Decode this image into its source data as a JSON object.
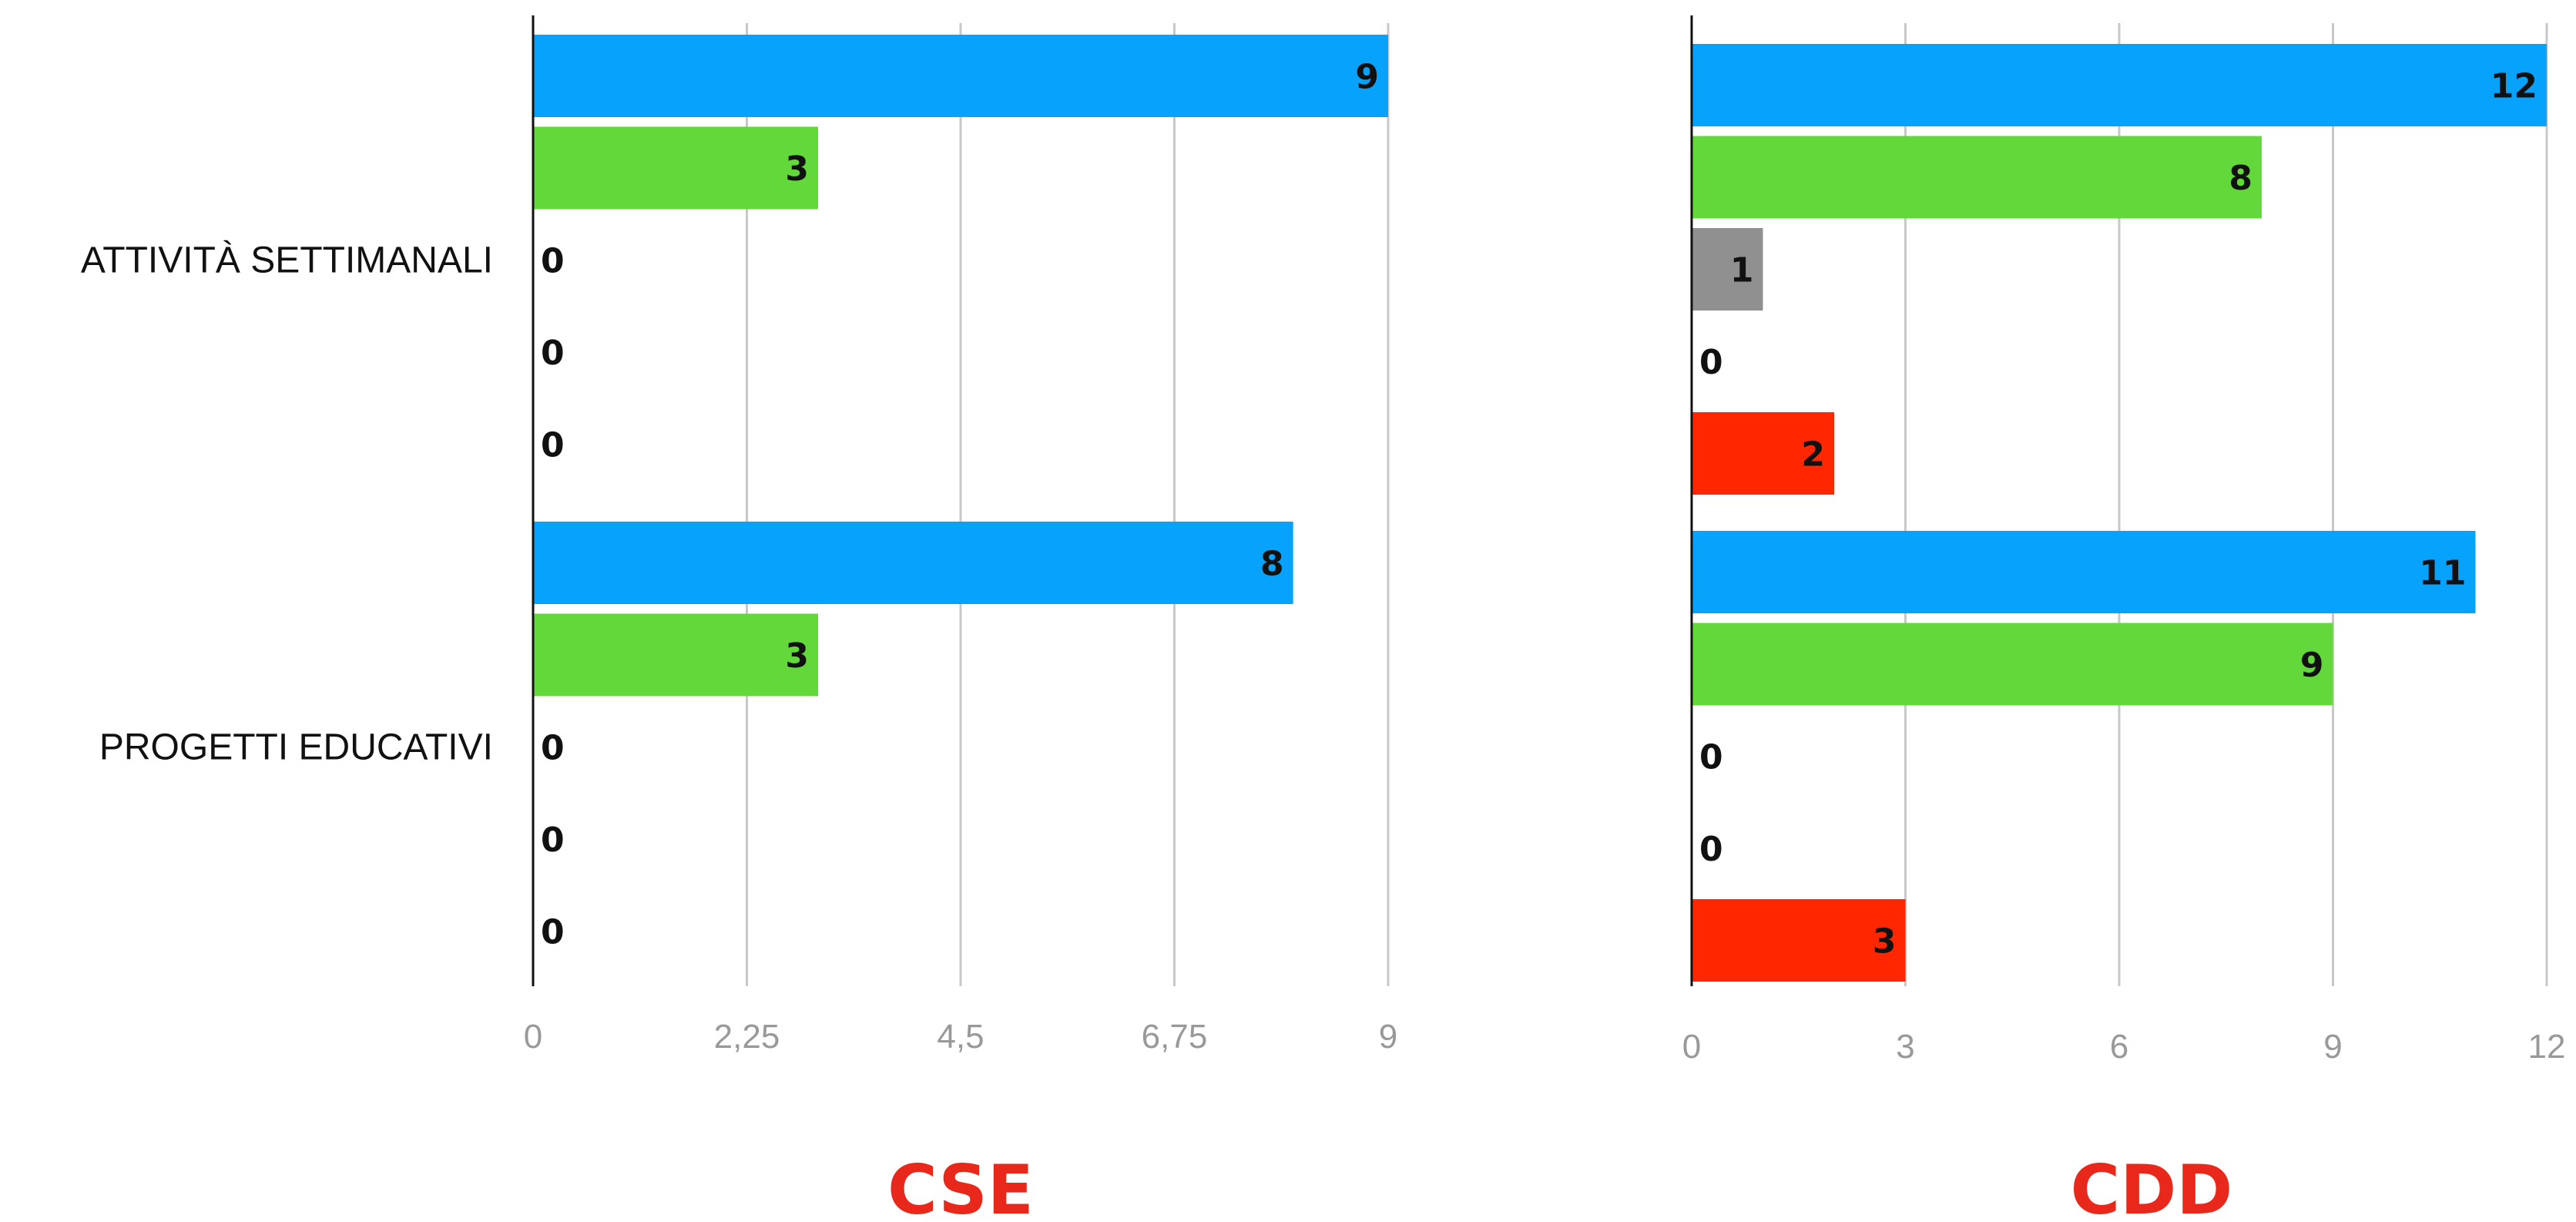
{
  "chart_data": [
    {
      "type": "bar",
      "orientation": "horizontal",
      "title": "CSE",
      "categories": [
        "ATTIVITÀ SETTIMANALI",
        "PROGETTI EDUCATIVI"
      ],
      "series": [
        {
          "color": "#06A2FB",
          "values": [
            9,
            8
          ]
        },
        {
          "color": "#63D83A",
          "values": [
            3,
            3
          ]
        },
        {
          "color": "#909090",
          "values": [
            0,
            0
          ]
        },
        {
          "color": "#F9D71C",
          "values": [
            0,
            0
          ]
        },
        {
          "color": "#FF2600",
          "values": [
            0,
            0
          ]
        }
      ],
      "xlim": [
        0,
        9
      ],
      "ticks": [
        "0",
        "2,25",
        "4,5",
        "6,75",
        "9"
      ],
      "grid": true
    },
    {
      "type": "bar",
      "orientation": "horizontal",
      "title": "CDD",
      "categories": [
        "ATTIVITÀ SETTIMANALI",
        "PROGETTI EDUCATIVI"
      ],
      "series": [
        {
          "color": "#06A2FB",
          "values": [
            12,
            11
          ]
        },
        {
          "color": "#63D83A",
          "values": [
            8,
            9
          ]
        },
        {
          "color": "#909090",
          "values": [
            1,
            0
          ]
        },
        {
          "color": "#F9D71C",
          "values": [
            0,
            0
          ]
        },
        {
          "color": "#FF2600",
          "values": [
            2,
            3
          ]
        }
      ],
      "xlim": [
        0,
        12
      ],
      "ticks": [
        "0",
        "3",
        "6",
        "9",
        "12"
      ],
      "grid": true
    }
  ],
  "title_color": "#E8281A"
}
